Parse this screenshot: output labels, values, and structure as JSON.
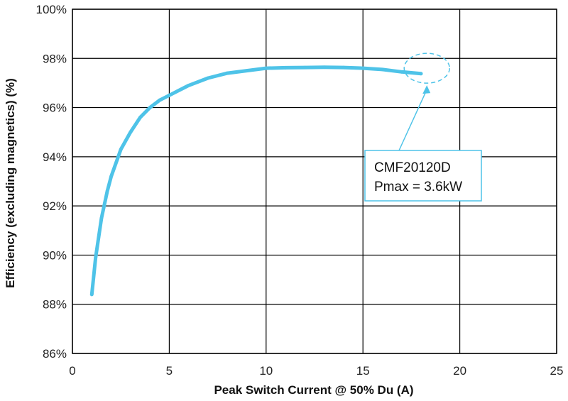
{
  "chart_data": {
    "type": "line",
    "xlabel": "Peak Switch Current @ 50% Du (A)",
    "ylabel": "Efficiency (excluding magnetics) (%)",
    "xlim": [
      0,
      25
    ],
    "ylim": [
      86,
      100
    ],
    "x_ticks": [
      0,
      5,
      10,
      15,
      20,
      25
    ],
    "x_tick_labels": [
      "0",
      "5",
      "10",
      "15",
      "20",
      "25"
    ],
    "y_ticks": [
      86,
      88,
      90,
      92,
      94,
      96,
      98,
      100
    ],
    "y_tick_labels": [
      "86%",
      "88%",
      "90%",
      "92%",
      "94%",
      "96%",
      "98%",
      "100%"
    ],
    "grid": true,
    "series": [
      {
        "color": "#4ec3e8",
        "x": [
          1.0,
          1.2,
          1.5,
          1.8,
          2.0,
          2.5,
          3.0,
          3.5,
          4.0,
          4.5,
          5.0,
          6.0,
          7.0,
          8.0,
          9.0,
          10.0,
          11.0,
          12.0,
          13.0,
          14.0,
          15.0,
          16.0,
          17.0,
          18.0
        ],
        "y": [
          88.4,
          89.9,
          91.5,
          92.6,
          93.2,
          94.3,
          95.0,
          95.6,
          96.0,
          96.3,
          96.5,
          96.9,
          97.2,
          97.4,
          97.5,
          97.6,
          97.62,
          97.63,
          97.64,
          97.63,
          97.6,
          97.55,
          97.45,
          97.38
        ]
      }
    ],
    "annotation": {
      "lines": [
        "CMF20120D",
        "Pmax = 3.6kW"
      ],
      "target_x": 18.3,
      "target_y": 97.6,
      "color": "#4ec3e8"
    }
  }
}
